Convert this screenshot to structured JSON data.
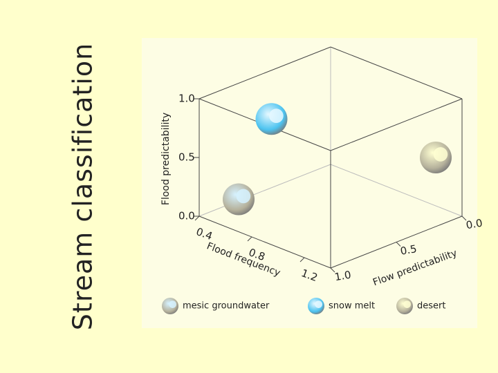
{
  "slide": {
    "title": "Stream classification"
  },
  "chart_data": {
    "type": "scatter3d",
    "x_label": "Flood frequency",
    "y_label": "Flow predictability",
    "z_label": "Flood predictability",
    "xlim": [
      0.4,
      1.4
    ],
    "xticks": [
      0.4,
      0.8,
      1.2
    ],
    "ylim": [
      0,
      1
    ],
    "yticks": [
      {
        "value": 0,
        "label": "0.0"
      },
      0.5,
      {
        "value": 1,
        "label": "1.0"
      }
    ],
    "zlim": [
      0,
      1
    ],
    "zticks": [
      {
        "value": 0,
        "label": "0.0"
      },
      0.5,
      {
        "value": 1,
        "label": "1.0"
      }
    ],
    "series": [
      {
        "name": "mesic groundwater",
        "color": "#b5b19b",
        "highlight_color": "#d6f2ff",
        "x": [
          0.5
        ],
        "y": [
          0.8
        ],
        "z": [
          0.1
        ]
      },
      {
        "name": "snow melt",
        "color": "#4cc3f0",
        "highlight_color": "#e6f8ff",
        "x": [
          0.7
        ],
        "y": [
          0.75
        ],
        "z": [
          0.85
        ]
      },
      {
        "name": "desert",
        "color": "#b5b19b",
        "highlight_color": "#ffffd2",
        "x": [
          1.3
        ],
        "y": [
          0.1
        ],
        "z": [
          0.5
        ]
      }
    ]
  }
}
